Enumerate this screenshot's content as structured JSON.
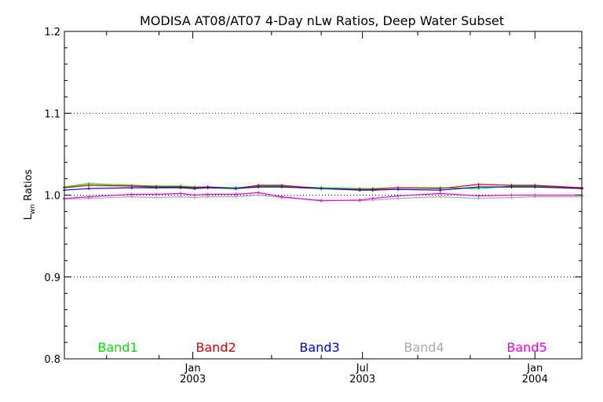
{
  "chart_data": {
    "type": "line",
    "title": "MODISA AT08/AT07 4-Day nLw Ratios, Deep Water Subset",
    "ylabel_main": "L",
    "ylabel_sub": "wn",
    "ylabel_rest": " Ratios",
    "xlabel": "",
    "ylim": [
      0.8,
      1.2
    ],
    "xlim": [
      "2002-08-17",
      "2004-02-20"
    ],
    "yticks": [
      "0.8",
      "0.9",
      "1.0",
      "1.1",
      "1.2"
    ],
    "ygrid": [
      0.9,
      1.0,
      1.1
    ],
    "reference_line": 1.0,
    "xticks": [
      {
        "date": "2003-01-01",
        "month": "Jan",
        "year": "2003"
      },
      {
        "date": "2003-07-01",
        "month": "Jul",
        "year": "2003"
      },
      {
        "date": "2004-01-01",
        "month": "Jan",
        "year": "2004"
      }
    ],
    "xminor": [
      "2002-10-01",
      "2002-11-26",
      "2003-03-26",
      "2003-05-18",
      "2003-08-29",
      "2003-10-24",
      "2003-12-05"
    ],
    "legend_placement": "bottom",
    "x": [
      "2002-08-17",
      "2002-09-12",
      "2002-10-28",
      "2002-11-23",
      "2002-12-19",
      "2003-01-03",
      "2003-01-17",
      "2003-02-16",
      "2003-03-12",
      "2003-04-06",
      "2003-05-18",
      "2003-06-28",
      "2003-07-12",
      "2003-08-08",
      "2003-09-22",
      "2003-11-02",
      "2003-12-07",
      "2004-01-01",
      "2004-02-20"
    ],
    "series": [
      {
        "name": "Band1",
        "color": "#00dd00",
        "values": [
          1.01,
          1.014,
          1.012,
          1.011,
          1.011,
          1.01,
          1.01,
          1.009,
          1.011,
          1.011,
          1.009,
          1.008,
          1.008,
          1.009,
          1.009,
          1.008,
          1.011,
          1.011,
          1.008
        ]
      },
      {
        "name": "Band2",
        "color": "#dd0000",
        "values": [
          1.009,
          1.012,
          1.011,
          1.01,
          1.01,
          1.009,
          1.01,
          1.008,
          1.012,
          1.012,
          1.008,
          1.007,
          1.007,
          1.009,
          1.008,
          1.013,
          1.012,
          1.012,
          1.009
        ]
      },
      {
        "name": "Band3",
        "color": "#0000dd",
        "values": [
          1.006,
          1.008,
          1.009,
          1.009,
          1.009,
          1.008,
          1.009,
          1.008,
          1.01,
          1.01,
          1.008,
          1.006,
          1.006,
          1.007,
          1.006,
          1.01,
          1.01,
          1.01,
          1.008
        ]
      },
      {
        "name": "Band4",
        "color": "#aaaaaa",
        "values": [
          0.995,
          0.996,
          0.998,
          0.997,
          0.998,
          0.997,
          0.998,
          0.998,
          1.0,
          0.997,
          0.994,
          0.993,
          0.994,
          0.996,
          0.998,
          0.996,
          0.997,
          0.998,
          0.998
        ]
      },
      {
        "name": "Band5",
        "color": "#ee00ee",
        "values": [
          0.996,
          0.998,
          1.001,
          1.001,
          1.002,
          1.0,
          1.001,
          1.001,
          1.003,
          0.998,
          0.993,
          0.994,
          0.996,
          0.999,
          1.002,
          0.999,
          1.0,
          1.0,
          1.0
        ]
      }
    ]
  }
}
